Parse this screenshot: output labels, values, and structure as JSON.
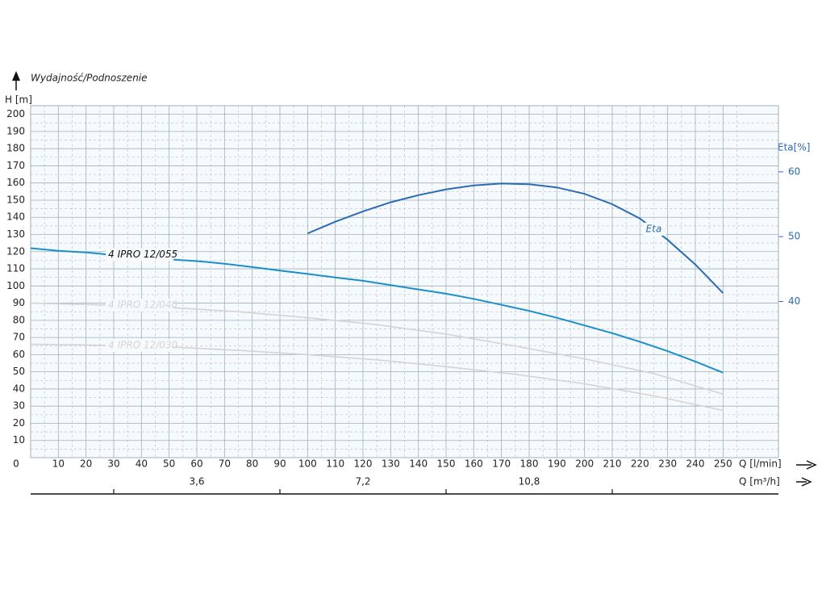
{
  "chart_data": {
    "type": "line",
    "title": "Wydajność/Podnoszenie",
    "y_label": "H [m]",
    "y2_label": "Eta[%]",
    "x_label": "Q [l/min]",
    "x2_label": "Q [m³/h]",
    "xlim": [
      0,
      270
    ],
    "xticks": [
      0,
      10,
      20,
      30,
      40,
      50,
      60,
      70,
      80,
      90,
      100,
      110,
      120,
      130,
      140,
      150,
      160,
      170,
      180,
      190,
      200,
      210,
      220,
      230,
      240,
      250
    ],
    "ylim": [
      0,
      205
    ],
    "yticks": [
      10,
      20,
      30,
      40,
      50,
      60,
      70,
      80,
      90,
      100,
      110,
      120,
      130,
      140,
      150,
      160,
      170,
      180,
      190,
      200
    ],
    "y2lim": [
      15.9,
      70.2
    ],
    "y2ticks": [
      40,
      50,
      60
    ],
    "x2lim": [
      0,
      16.2
    ],
    "x2ticks": [
      {
        "value": 3.6,
        "label": "3,6"
      },
      {
        "value": 7.2,
        "label": "7,2"
      },
      {
        "value": 10.8,
        "label": "10,8"
      }
    ],
    "x2minor_ticks": [
      1.8,
      5.4,
      9,
      12.6
    ],
    "grid": true,
    "minor_grid": true,
    "series": [
      {
        "name": "4 IPRO 12/055",
        "color": "#1a8fc9",
        "x": [
          0,
          10,
          20,
          30,
          40,
          50,
          60,
          70,
          80,
          90,
          100,
          110,
          120,
          130,
          140,
          150,
          160,
          170,
          180,
          190,
          200,
          210,
          220,
          230,
          240,
          250
        ],
        "values": [
          122,
          120.5,
          119.5,
          118,
          117,
          115.5,
          114.5,
          113,
          111,
          109,
          107,
          105,
          103,
          100.5,
          98,
          95.5,
          92.5,
          89,
          85.5,
          81.5,
          77,
          72.5,
          67.5,
          62,
          56,
          49.5
        ]
      },
      {
        "name": "4 IPRO 12/040",
        "color": "#d4d4d4",
        "x": [
          0,
          25,
          50,
          75,
          100,
          125,
          150,
          175,
          200,
          225,
          250
        ],
        "values": [
          90,
          89,
          87.5,
          85,
          81.5,
          77.5,
          72,
          65,
          57.5,
          49,
          37
        ]
      },
      {
        "name": "4 IPRO 12/030",
        "color": "#d4d4d4",
        "x": [
          0,
          25,
          50,
          75,
          100,
          125,
          150,
          175,
          200,
          225,
          250
        ],
        "values": [
          66,
          65.5,
          64.5,
          62.5,
          60,
          57,
          53,
          48.5,
          43,
          36,
          27.5
        ]
      },
      {
        "name": "Eta",
        "color": "#2b6cb3",
        "axis": "y2",
        "x": [
          100,
          110,
          120,
          130,
          140,
          150,
          160,
          170,
          180,
          190,
          200,
          210,
          220,
          230,
          240,
          250
        ],
        "values": [
          50.5,
          52.3,
          53.9,
          55.3,
          56.4,
          57.3,
          57.9,
          58.2,
          58.1,
          57.6,
          56.6,
          55,
          52.8,
          49.5,
          45.7,
          41.3
        ]
      }
    ]
  }
}
